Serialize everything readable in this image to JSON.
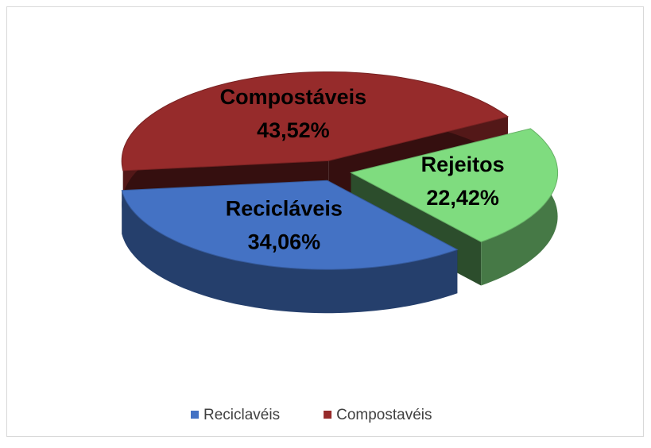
{
  "chart_data": {
    "type": "pie3d",
    "categories": [
      "Recicláveis",
      "Compostáveis",
      "Rejeitos"
    ],
    "values": [
      34.06,
      43.52,
      22.42
    ],
    "value_labels": [
      "34,06%",
      "43,52%",
      "22,42%"
    ],
    "colors": [
      "#4472c4",
      "#962b2b",
      "#7fdc7f"
    ],
    "legend": [
      "Reciclavéis",
      "Compostavéis"
    ]
  }
}
